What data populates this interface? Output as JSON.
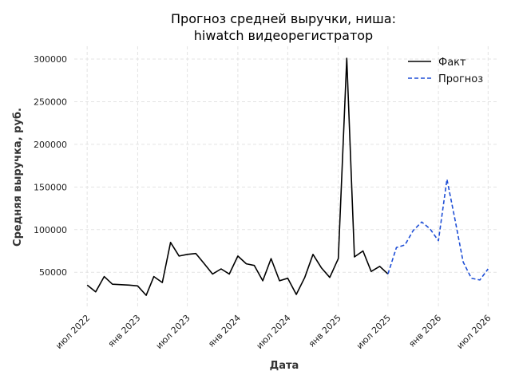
{
  "chart_data": {
    "type": "line",
    "title": [
      "Прогноз средней выручки, ниша:",
      "hiwatch видеорегистратор"
    ],
    "xlabel": "Дата",
    "ylabel": "Средняя выручка, руб.",
    "xlim": [
      "2022-05-15",
      "2026-08-01"
    ],
    "ylim": [
      10000,
      315000
    ],
    "yticks": [
      50000,
      100000,
      150000,
      200000,
      250000,
      300000
    ],
    "xticks": [
      {
        "date": "2022-07-01",
        "label": "июл 2022"
      },
      {
        "date": "2023-01-01",
        "label": "янв 2023"
      },
      {
        "date": "2023-07-01",
        "label": "июл 2023"
      },
      {
        "date": "2024-01-01",
        "label": "янв 2024"
      },
      {
        "date": "2024-07-01",
        "label": "июл 2024"
      },
      {
        "date": "2025-01-01",
        "label": "янв 2025"
      },
      {
        "date": "2025-07-01",
        "label": "июл 2025"
      },
      {
        "date": "2026-01-01",
        "label": "янв 2026"
      },
      {
        "date": "2026-07-01",
        "label": "июл 2026"
      }
    ],
    "grid": true,
    "legend": "top-right",
    "series": [
      {
        "name": "Факт",
        "color": "#000000",
        "style": "solid",
        "points": [
          [
            "2022-07-01",
            35000
          ],
          [
            "2022-08-01",
            27000
          ],
          [
            "2022-09-01",
            45000
          ],
          [
            "2022-10-01",
            36000
          ],
          [
            "2022-12-01",
            35000
          ],
          [
            "2023-01-01",
            34000
          ],
          [
            "2023-02-01",
            23000
          ],
          [
            "2023-03-01",
            45000
          ],
          [
            "2023-04-01",
            38000
          ],
          [
            "2023-05-01",
            85000
          ],
          [
            "2023-06-01",
            69000
          ],
          [
            "2023-07-01",
            71000
          ],
          [
            "2023-08-01",
            72000
          ],
          [
            "2023-09-01",
            60000
          ],
          [
            "2023-10-01",
            48000
          ],
          [
            "2023-11-01",
            54000
          ],
          [
            "2023-12-01",
            48000
          ],
          [
            "2024-01-01",
            69000
          ],
          [
            "2024-02-01",
            60000
          ],
          [
            "2024-03-01",
            58000
          ],
          [
            "2024-04-01",
            40000
          ],
          [
            "2024-05-01",
            66000
          ],
          [
            "2024-06-01",
            40000
          ],
          [
            "2024-07-01",
            43000
          ],
          [
            "2024-08-01",
            24000
          ],
          [
            "2024-09-01",
            44000
          ],
          [
            "2024-10-01",
            71000
          ],
          [
            "2024-11-01",
            55000
          ],
          [
            "2024-12-01",
            44000
          ],
          [
            "2025-01-01",
            66000
          ],
          [
            "2025-02-01",
            301000
          ],
          [
            "2025-03-01",
            68000
          ],
          [
            "2025-04-01",
            75000
          ],
          [
            "2025-05-01",
            51000
          ],
          [
            "2025-06-01",
            57000
          ],
          [
            "2025-07-01",
            48000
          ]
        ]
      },
      {
        "name": "Прогноз",
        "color": "#1f4fd6",
        "style": "dashed",
        "points": [
          [
            "2025-07-01",
            48000
          ],
          [
            "2025-08-01",
            79000
          ],
          [
            "2025-09-01",
            82000
          ],
          [
            "2025-10-01",
            99000
          ],
          [
            "2025-11-01",
            109000
          ],
          [
            "2025-12-01",
            101000
          ],
          [
            "2026-01-01",
            87000
          ],
          [
            "2026-02-01",
            159000
          ],
          [
            "2026-03-01",
            114000
          ],
          [
            "2026-04-01",
            62000
          ],
          [
            "2026-05-01",
            43000
          ],
          [
            "2026-06-01",
            41000
          ],
          [
            "2026-07-01",
            54000
          ]
        ]
      }
    ]
  }
}
